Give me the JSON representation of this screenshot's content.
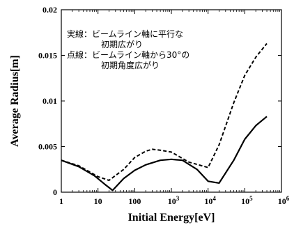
{
  "chart_data": {
    "type": "line",
    "title": "",
    "xlabel": "Initial Energy[eV]",
    "ylabel": "Average Radius[m]",
    "xscale": "log",
    "xlim": [
      1,
      1000000
    ],
    "ylim": [
      0,
      0.02
    ],
    "grid": false,
    "legend": "none",
    "x_tick_labels": [
      {
        "base": "1",
        "exp": ""
      },
      {
        "base": "10",
        "exp": ""
      },
      {
        "base": "100",
        "exp": ""
      },
      {
        "base": "10",
        "exp": "3"
      },
      {
        "base": "10",
        "exp": "4"
      },
      {
        "base": "10",
        "exp": "5"
      },
      {
        "base": "10",
        "exp": "6"
      }
    ],
    "y_ticks": [
      0,
      0.005,
      0.01,
      0.015,
      0.02
    ],
    "y_tick_labels": [
      "0",
      "0.005",
      "0.01",
      "0.015",
      "0.02"
    ],
    "annotations": [
      "実線：ビームライン軸に平行な",
      "初期広がり",
      "点線：ビームライン軸から30°の",
      "初期角度広がり"
    ],
    "series": [
      {
        "style": "solid",
        "x": [
          1,
          3,
          8,
          15,
          25,
          50,
          100,
          200,
          500,
          1000,
          2000,
          5000,
          10000,
          20000,
          50000,
          100000,
          200000,
          400000
        ],
        "y": [
          0.0035,
          0.0028,
          0.0018,
          0.0009,
          0.0002,
          0.0015,
          0.0024,
          0.003,
          0.0035,
          0.0036,
          0.0035,
          0.0025,
          0.0012,
          0.001,
          0.0035,
          0.0058,
          0.0073,
          0.0083
        ]
      },
      {
        "style": "dashed",
        "x": [
          1,
          3,
          10,
          20,
          50,
          100,
          200,
          300,
          500,
          1000,
          3000,
          10000,
          20000,
          50000,
          100000,
          200000,
          400000
        ],
        "y": [
          0.0035,
          0.0029,
          0.0017,
          0.0013,
          0.0025,
          0.0038,
          0.0045,
          0.0047,
          0.0046,
          0.0044,
          0.0033,
          0.0027,
          0.0052,
          0.0098,
          0.0128,
          0.0148,
          0.0163
        ]
      }
    ]
  }
}
